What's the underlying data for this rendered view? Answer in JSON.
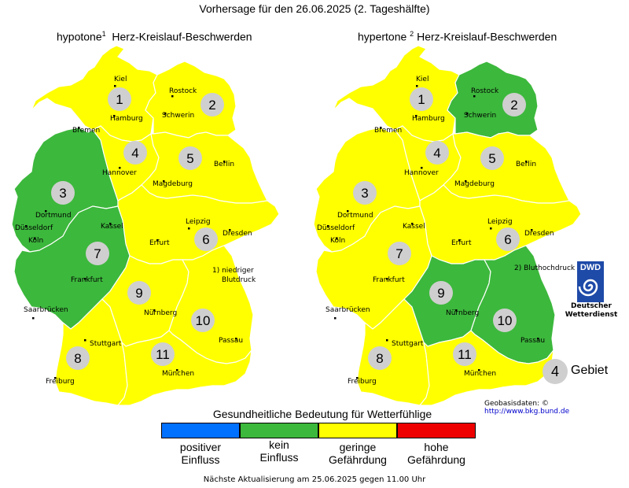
{
  "title": "Vorhersage für den 26.06.2025 (2. Tageshälfte)",
  "maps": [
    {
      "title_prefix": "hypotone",
      "title_sup": "1",
      "title_suffix": "Herz-Kreislauf-Beschwerden",
      "footnote_line1": "1) niedriger",
      "footnote_line2": "Blutdruck",
      "regions": [
        {
          "id": "1",
          "level": "geringe Gefährdung",
          "color": "#ffff00"
        },
        {
          "id": "2",
          "level": "geringe Gefährdung",
          "color": "#ffff00"
        },
        {
          "id": "3",
          "level": "kein Einfluss",
          "color": "#3cb83c"
        },
        {
          "id": "4",
          "level": "geringe Gefährdung",
          "color": "#ffff00"
        },
        {
          "id": "5",
          "level": "geringe Gefährdung",
          "color": "#ffff00"
        },
        {
          "id": "6",
          "level": "geringe Gefährdung",
          "color": "#ffff00"
        },
        {
          "id": "7",
          "level": "kein Einfluss",
          "color": "#3cb83c"
        },
        {
          "id": "8",
          "level": "geringe Gefährdung",
          "color": "#ffff00"
        },
        {
          "id": "9",
          "level": "geringe Gefährdung",
          "color": "#ffff00"
        },
        {
          "id": "10",
          "level": "geringe Gefährdung",
          "color": "#ffff00"
        },
        {
          "id": "11",
          "level": "geringe Gefährdung",
          "color": "#ffff00"
        }
      ]
    },
    {
      "title_prefix": "hypertone",
      "title_sup": "2",
      "title_suffix": "Herz-Kreislauf-Beschwerden",
      "footnote_line1": "2) Bluthochdruck",
      "footnote_line2": "",
      "regions": [
        {
          "id": "1",
          "level": "geringe Gefährdung",
          "color": "#ffff00"
        },
        {
          "id": "2",
          "level": "kein Einfluss",
          "color": "#3cb83c"
        },
        {
          "id": "3",
          "level": "geringe Gefährdung",
          "color": "#ffff00"
        },
        {
          "id": "4",
          "level": "geringe Gefährdung",
          "color": "#ffff00"
        },
        {
          "id": "5",
          "level": "geringe Gefährdung",
          "color": "#ffff00"
        },
        {
          "id": "6",
          "level": "geringe Gefährdung",
          "color": "#ffff00"
        },
        {
          "id": "7",
          "level": "geringe Gefährdung",
          "color": "#ffff00"
        },
        {
          "id": "8",
          "level": "geringe Gefährdung",
          "color": "#ffff00"
        },
        {
          "id": "9",
          "level": "kein Einfluss",
          "color": "#3cb83c"
        },
        {
          "id": "10",
          "level": "kein Einfluss",
          "color": "#3cb83c"
        },
        {
          "id": "11",
          "level": "geringe Gefährdung",
          "color": "#ffff00"
        }
      ]
    }
  ],
  "cities": [
    "Kiel",
    "Rostock",
    "Hamburg",
    "Schwerin",
    "Bremen",
    "Hannover",
    "Berlin",
    "Magdeburg",
    "Dortmund",
    "Düsseldorf",
    "Köln",
    "Kassel",
    "Leipzig",
    "Dresden",
    "Erfurt",
    "Frankfurt",
    "Saarbrücken",
    "Nürnberg",
    "Passau",
    "Stuttgart",
    "München",
    "Freiburg"
  ],
  "legend": {
    "title": "Gesundheitliche Bedeutung für Wetterfühlige",
    "items": [
      {
        "line1": "positiver",
        "line2": "Einfluss",
        "color": "#0070ff"
      },
      {
        "line1": "kein",
        "line2": "Einfluss",
        "color": "#3cb83c"
      },
      {
        "line1": "geringe",
        "line2": "Gefährdung",
        "color": "#ffff00"
      },
      {
        "line1": "hohe",
        "line2": "Gefährdung",
        "color": "#ee0000"
      }
    ],
    "region_marker_number": "4",
    "region_marker_label": "Gebiet"
  },
  "dwd": {
    "logo_text": "DWD",
    "line1": "Deutscher",
    "line2": "Wetterdienst"
  },
  "geobasis": {
    "label": "Geobasisdaten: ©",
    "link": "http://www.bkg.bund.de"
  },
  "next_update": "Nächste Aktualisierung am 25.06.2025 gegen 11.00 Uhr"
}
